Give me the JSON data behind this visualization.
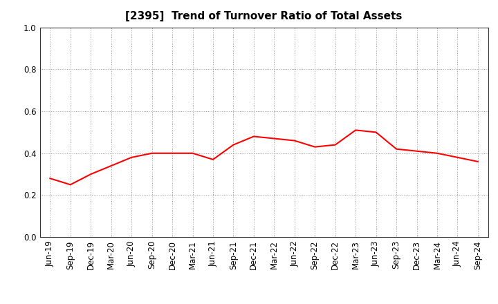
{
  "title": "[2395]  Trend of Turnover Ratio of Total Assets",
  "x_labels": [
    "Jun-19",
    "Sep-19",
    "Dec-19",
    "Mar-20",
    "Jun-20",
    "Sep-20",
    "Dec-20",
    "Mar-21",
    "Jun-21",
    "Sep-21",
    "Dec-21",
    "Mar-22",
    "Jun-22",
    "Sep-22",
    "Dec-22",
    "Mar-23",
    "Jun-23",
    "Sep-23",
    "Dec-23",
    "Mar-24",
    "Jun-24",
    "Sep-24"
  ],
  "values": [
    0.28,
    0.25,
    0.3,
    0.34,
    0.38,
    0.4,
    0.4,
    0.4,
    0.37,
    0.44,
    0.48,
    0.47,
    0.46,
    0.43,
    0.44,
    0.51,
    0.5,
    0.42,
    0.41,
    0.4,
    0.38,
    0.36
  ],
  "line_color": "#FF0000",
  "line_width": 1.5,
  "ylim": [
    0.0,
    1.0
  ],
  "yticks": [
    0.0,
    0.2,
    0.4,
    0.6,
    0.8,
    1.0
  ],
  "grid_color": "#999999",
  "bg_color": "#ffffff",
  "title_fontsize": 11,
  "tick_fontsize": 8.5
}
